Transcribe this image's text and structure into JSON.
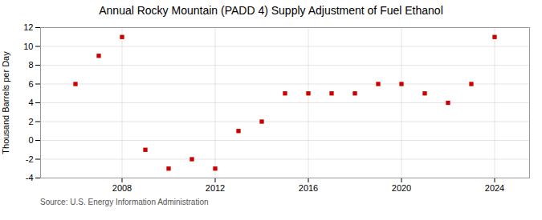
{
  "chart_data": {
    "type": "scatter",
    "title": "Annual Rocky Mountain (PADD 4) Supply Adjustment of Fuel Ethanol",
    "ylabel": "Thousand Barrels per Day",
    "source": "Source: U.S. Energy Information Administration",
    "x": [
      2006,
      2007,
      2008,
      2009,
      2010,
      2011,
      2012,
      2013,
      2014,
      2015,
      2016,
      2017,
      2018,
      2019,
      2020,
      2021,
      2022,
      2023,
      2024
    ],
    "values": [
      6,
      9,
      11,
      -1,
      -3,
      -2,
      -3,
      1,
      2,
      5,
      5,
      5,
      5,
      6,
      6,
      5,
      4,
      6,
      11
    ],
    "color": "#cc0000",
    "marker": "square",
    "ylim": [
      -4,
      12
    ],
    "yticks": [
      -4,
      -2,
      0,
      2,
      4,
      6,
      8,
      10,
      12
    ],
    "xlim": [
      2004.5,
      2025.5
    ],
    "xticks": [
      2008,
      2012,
      2016,
      2020,
      2024
    ],
    "grid": true
  }
}
